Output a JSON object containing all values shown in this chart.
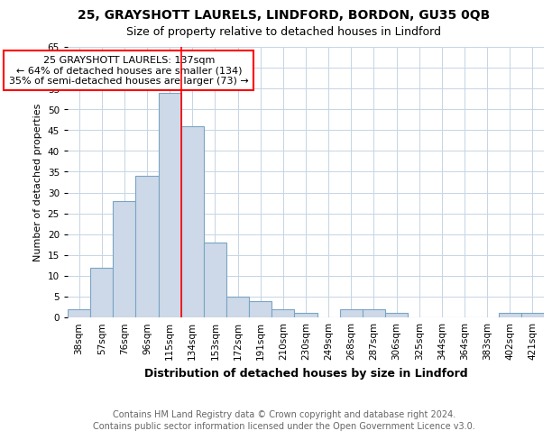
{
  "title1": "25, GRAYSHOTT LAURELS, LINDFORD, BORDON, GU35 0QB",
  "title2": "Size of property relative to detached houses in Lindford",
  "xlabel": "Distribution of detached houses by size in Lindford",
  "ylabel": "Number of detached properties",
  "bar_labels": [
    "38sqm",
    "57sqm",
    "76sqm",
    "96sqm",
    "115sqm",
    "134sqm",
    "153sqm",
    "172sqm",
    "191sqm",
    "210sqm",
    "230sqm",
    "249sqm",
    "268sqm",
    "287sqm",
    "306sqm",
    "325sqm",
    "344sqm",
    "364sqm",
    "383sqm",
    "402sqm",
    "421sqm"
  ],
  "bar_values": [
    2,
    12,
    28,
    34,
    54,
    46,
    18,
    5,
    4,
    2,
    1,
    0,
    2,
    2,
    1,
    0,
    0,
    0,
    0,
    1,
    1
  ],
  "bar_color": "#cdd9e8",
  "bar_edge_color": "#7aa4c4",
  "bar_edge_width": 0.8,
  "red_line_index": 5,
  "annotation_text": "25 GRAYSHOTT LAURELS: 137sqm\n← 64% of detached houses are smaller (134)\n35% of semi-detached houses are larger (73) →",
  "ylim": [
    0,
    65
  ],
  "yticks": [
    0,
    5,
    10,
    15,
    20,
    25,
    30,
    35,
    40,
    45,
    50,
    55,
    60,
    65
  ],
  "grid_color": "#c5d5e5",
  "background_color": "white",
  "footer1": "Contains HM Land Registry data © Crown copyright and database right 2024.",
  "footer2": "Contains public sector information licensed under the Open Government Licence v3.0.",
  "title1_fontsize": 10,
  "title2_fontsize": 9,
  "xlabel_fontsize": 9,
  "ylabel_fontsize": 8,
  "tick_fontsize": 7.5,
  "annotation_fontsize": 8,
  "footer_fontsize": 7
}
